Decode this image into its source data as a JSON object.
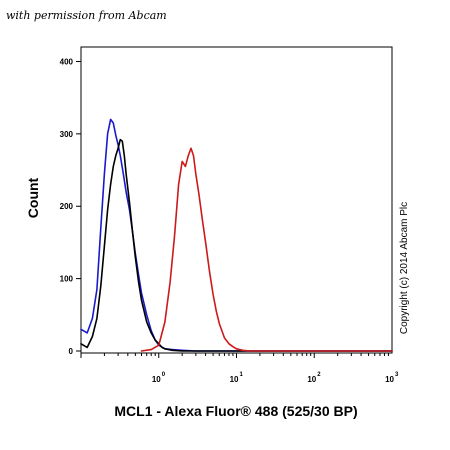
{
  "watermark": "with permission from Abcam",
  "copyright": "Copyright (c) 2014 Abcam Plc",
  "chart_data": {
    "type": "line",
    "xlabel": "MCL1 - Alexa Fluor® 488 (525/30 BP)",
    "ylabel": "Count",
    "xscale": "log",
    "xlim": [
      0.1,
      1000
    ],
    "ylim": [
      0,
      420
    ],
    "yticks": [
      0,
      100,
      200,
      300,
      400
    ],
    "xticks": [
      {
        "base": "10",
        "exp": "0",
        "value": 1
      },
      {
        "base": "10",
        "exp": "1",
        "value": 10
      },
      {
        "base": "10",
        "exp": "2",
        "value": 100
      },
      {
        "base": "10",
        "exp": "3",
        "value": 1000
      }
    ],
    "grid": false,
    "series": [
      {
        "color": "#1a1acc",
        "x": [
          0.1,
          0.12,
          0.14,
          0.16,
          0.18,
          0.2,
          0.22,
          0.24,
          0.26,
          0.28,
          0.3,
          0.32,
          0.35,
          0.38,
          0.42,
          0.46,
          0.5,
          0.55,
          0.6,
          0.7,
          0.8,
          0.9,
          1.0,
          1.2,
          1.5,
          2.0,
          3.0,
          1000
        ],
        "y": [
          30,
          25,
          45,
          85,
          170,
          245,
          300,
          320,
          315,
          298,
          285,
          270,
          245,
          220,
          195,
          165,
          135,
          105,
          80,
          50,
          28,
          15,
          8,
          3,
          2,
          1,
          0,
          0
        ]
      },
      {
        "color": "#000000",
        "x": [
          0.1,
          0.12,
          0.14,
          0.16,
          0.18,
          0.2,
          0.22,
          0.24,
          0.26,
          0.28,
          0.3,
          0.32,
          0.34,
          0.36,
          0.38,
          0.42,
          0.46,
          0.5,
          0.55,
          0.6,
          0.7,
          0.8,
          0.9,
          1.0,
          1.1,
          1.2,
          1.5,
          2.0,
          3.0,
          1000
        ],
        "y": [
          10,
          5,
          20,
          45,
          90,
          145,
          195,
          230,
          255,
          270,
          280,
          292,
          290,
          270,
          245,
          205,
          165,
          130,
          95,
          70,
          40,
          25,
          15,
          10,
          5,
          3,
          1,
          0,
          0,
          0
        ]
      },
      {
        "color": "#cc1a1a",
        "x": [
          0.6,
          0.8,
          1.0,
          1.2,
          1.4,
          1.6,
          1.8,
          2.0,
          2.2,
          2.4,
          2.6,
          2.8,
          3.0,
          3.3,
          3.6,
          4.0,
          4.5,
          5.0,
          5.5,
          6.0,
          7.0,
          8.0,
          9.0,
          10.0,
          12.0,
          15.0,
          20.0,
          1000
        ],
        "y": [
          0,
          2,
          8,
          40,
          95,
          160,
          230,
          262,
          255,
          270,
          280,
          270,
          245,
          215,
          185,
          150,
          110,
          78,
          55,
          38,
          18,
          10,
          6,
          3,
          1,
          0,
          0,
          0
        ]
      }
    ]
  }
}
